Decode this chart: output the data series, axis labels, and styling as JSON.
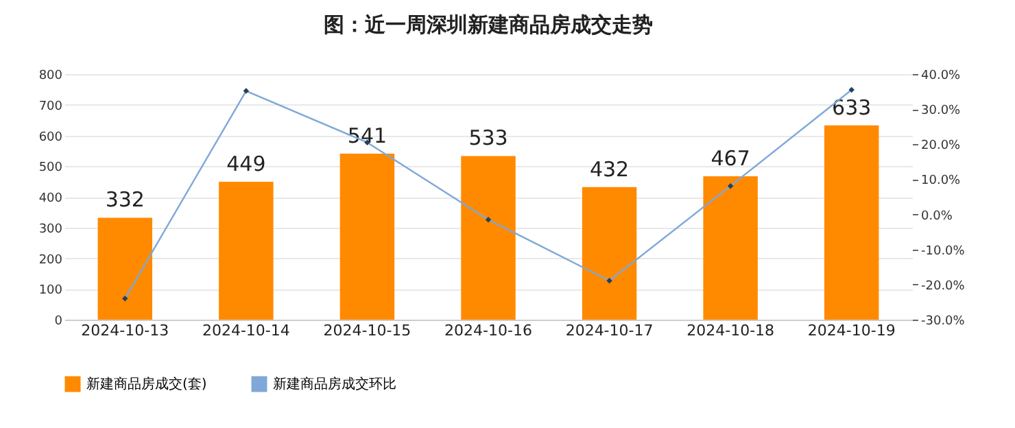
{
  "chart_data": {
    "type": "bar",
    "title": "图：近一周深圳新建商品房成交走势",
    "categories": [
      "2024-10-13",
      "2024-10-14",
      "2024-10-15",
      "2024-10-16",
      "2024-10-17",
      "2024-10-18",
      "2024-10-19"
    ],
    "series": [
      {
        "name": "新建商品房成交(套)",
        "color": "#ff8a00",
        "values": [
          332,
          449,
          541,
          533,
          432,
          467,
          633
        ],
        "value_labels": [
          "332",
          "449",
          "541",
          "533",
          "432",
          "467",
          "633"
        ]
      },
      {
        "name": "新建商品房成交环比",
        "type": "line",
        "axis": "y2",
        "color": "#7fa8d8",
        "values": [
          -24,
          35.2,
          20.5,
          -1.5,
          -18.9,
          8.1,
          35.5
        ]
      }
    ],
    "ylim": [
      0,
      800
    ],
    "yticks": [
      0,
      100,
      200,
      300,
      400,
      500,
      600,
      700,
      800
    ],
    "y2lim": [
      -30,
      40
    ],
    "y2ticks": [
      {
        "value": -30,
        "label": "-30.0%"
      },
      {
        "value": -20,
        "label": "-20.0%"
      },
      {
        "value": -10,
        "label": "-10.0%"
      },
      {
        "value": 0,
        "label": "0.0%"
      },
      {
        "value": 10,
        "label": "10.0%"
      },
      {
        "value": 20,
        "label": "20.0%"
      },
      {
        "value": 30,
        "label": "30.0%"
      },
      {
        "value": 40,
        "label": "40.0%"
      }
    ],
    "grid": "y",
    "legend": "bottom",
    "marker": "diamond"
  }
}
